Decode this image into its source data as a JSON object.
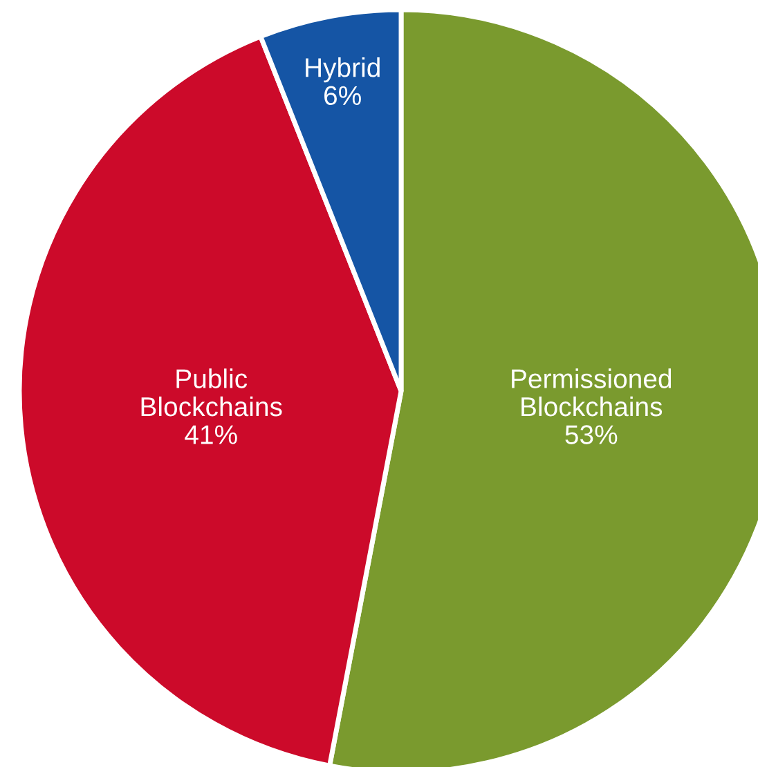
{
  "chart_data": {
    "type": "pie",
    "categories": [
      "Permissioned\nBlockchains",
      "Public\nBlockchains",
      "Hybrid"
    ],
    "values": [
      53,
      41,
      6
    ],
    "colors": [
      "#7a9a2e",
      "#cc0a2a",
      "#1555a5"
    ],
    "value_labels": [
      "53%",
      "41%",
      "6%"
    ]
  }
}
